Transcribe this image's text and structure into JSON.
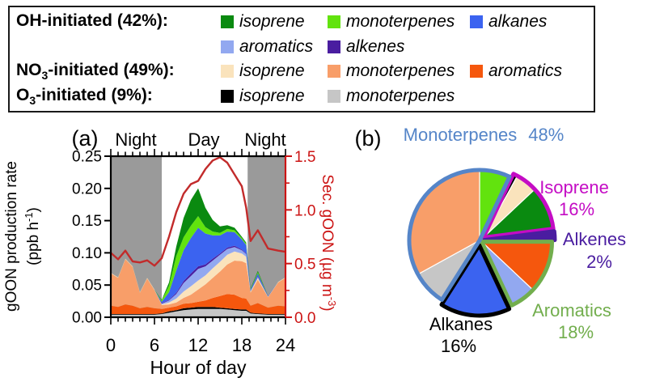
{
  "legend": {
    "rows": [
      {
        "group_prefix": "OH",
        "group_sub": "",
        "group_suffix": "-initiated (42%):",
        "items": [
          {
            "label": "isoprene",
            "color": "#0a8a10"
          },
          {
            "label": "monoterpenes",
            "color": "#62e30e"
          },
          {
            "label": "alkanes",
            "color": "#3b63f0"
          }
        ]
      },
      {
        "group_prefix": "",
        "group_sub": "",
        "group_suffix": "",
        "items": [
          {
            "label": "aromatics",
            "color": "#92a8f0"
          },
          {
            "label": "alkenes",
            "color": "#4a1da0"
          }
        ]
      },
      {
        "group_prefix": "NO",
        "group_sub": "3",
        "group_suffix": "-initiated (49%):",
        "items": [
          {
            "label": "isoprene",
            "color": "#fae3bc"
          },
          {
            "label": "monoterpenes",
            "color": "#f89e69"
          },
          {
            "label": "aromatics",
            "color": "#f5570d"
          }
        ]
      },
      {
        "group_prefix": "O",
        "group_sub": "3",
        "group_suffix": "-initiated (9%):",
        "items": [
          {
            "label": "isoprene",
            "color": "#000000"
          },
          {
            "label": "monoterpenes",
            "color": "#c6c6c6"
          }
        ]
      }
    ]
  },
  "chart_data": [
    {
      "id": "a",
      "type": "area",
      "stacked": true,
      "title": "(a)",
      "period_labels": [
        "Night",
        "Day",
        "Night"
      ],
      "xlabel": "Hour of day",
      "left_label_line1": "gOON production rate",
      "left_label_line2_open": "(ppb h",
      "left_label_line2_sup": "-1",
      "left_label_line2_close": ")",
      "right_label_open": "Sec. gOON (µg m",
      "right_label_sup": "-3",
      "right_label_close": ")",
      "xlim": [
        0,
        24
      ],
      "ylim_left": [
        0,
        0.25
      ],
      "ylim_right": [
        0,
        1.5
      ],
      "x_ticks": [
        0,
        6,
        12,
        18,
        24
      ],
      "left_ticks": [
        "0.00",
        "0.05",
        "0.10",
        "0.15",
        "0.20",
        "0.25"
      ],
      "right_ticks": [
        "0.0",
        "0.5",
        "1.0",
        "1.5"
      ],
      "day_span": [
        7,
        18.8
      ],
      "colors": {
        "night": "#9a9a9a",
        "axis_red": "#cc1414"
      },
      "x": [
        0,
        1,
        2,
        3,
        4,
        5,
        6,
        7,
        8,
        9,
        10,
        11,
        12,
        13,
        14,
        15,
        16,
        17,
        18,
        18.6,
        19.2,
        20.2,
        21.6,
        23,
        24
      ],
      "layers": [
        {
          "name": "o3_monoterpenes",
          "color": "#c6c6c6",
          "values": [
            0.004,
            0.004,
            0.004,
            0.004,
            0.004,
            0.004,
            0.004,
            0.005,
            0.007,
            0.009,
            0.011,
            0.012,
            0.013,
            0.013,
            0.013,
            0.013,
            0.012,
            0.011,
            0.01,
            0.01,
            0.006,
            0.005,
            0.004,
            0.004,
            0.004
          ]
        },
        {
          "name": "o3_isoprene",
          "color": "#000000",
          "values": [
            0.001,
            0.001,
            0.001,
            0.001,
            0.001,
            0.001,
            0.001,
            0.001,
            0.002,
            0.002,
            0.003,
            0.003,
            0.003,
            0.003,
            0.003,
            0.002,
            0.002,
            0.002,
            0.002,
            0.002,
            0.001,
            0.001,
            0.001,
            0.001,
            0.001
          ]
        },
        {
          "name": "no3_aromatics",
          "color": "#f5570d",
          "values": [
            0.013,
            0.011,
            0.015,
            0.013,
            0.009,
            0.011,
            0.009,
            0.007,
            0.006,
            0.006,
            0.007,
            0.007,
            0.008,
            0.01,
            0.014,
            0.018,
            0.022,
            0.022,
            0.018,
            0.017,
            0.011,
            0.016,
            0.01,
            0.013,
            0.012
          ]
        },
        {
          "name": "no3_monoterpenes",
          "color": "#f89e69",
          "values": [
            0.05,
            0.045,
            0.07,
            0.06,
            0.024,
            0.044,
            0.028,
            0.006,
            0.005,
            0.006,
            0.009,
            0.013,
            0.019,
            0.025,
            0.031,
            0.038,
            0.046,
            0.053,
            0.057,
            0.055,
            0.02,
            0.036,
            0.016,
            0.036,
            0.044
          ]
        },
        {
          "name": "no3_isoprene",
          "color": "#fae3bc",
          "values": [
            0.001,
            0.001,
            0.001,
            0.001,
            0.001,
            0.001,
            0.001,
            0.001,
            0.003,
            0.006,
            0.01,
            0.013,
            0.014,
            0.014,
            0.015,
            0.015,
            0.015,
            0.014,
            0.012,
            0.01,
            0.002,
            0.003,
            0.001,
            0.001,
            0.001
          ]
        },
        {
          "name": "oh_aromatics",
          "color": "#92a8f0",
          "values": [
            0,
            0,
            0,
            0,
            0,
            0,
            0,
            0.001,
            0.003,
            0.007,
            0.013,
            0.016,
            0.018,
            0.014,
            0.012,
            0.011,
            0.009,
            0.007,
            0.005,
            0.004,
            0.001,
            0.002,
            0,
            0,
            0
          ]
        },
        {
          "name": "oh_alkenes",
          "color": "#4a1da0",
          "values": [
            0,
            0,
            0,
            0,
            0,
            0,
            0,
            0.001,
            0.001,
            0.002,
            0.003,
            0.004,
            0.004,
            0.003,
            0.003,
            0.002,
            0.002,
            0.002,
            0.001,
            0.001,
            0,
            0.001,
            0,
            0,
            0
          ]
        },
        {
          "name": "oh_alkanes",
          "color": "#3b63f0",
          "values": [
            0,
            0,
            0,
            0,
            0,
            0,
            0,
            0.002,
            0.012,
            0.035,
            0.048,
            0.055,
            0.06,
            0.048,
            0.036,
            0.028,
            0.025,
            0.021,
            0.016,
            0.013,
            0.002,
            0.004,
            0.001,
            0,
            0
          ]
        },
        {
          "name": "oh_monoterpenes",
          "color": "#62e30e",
          "values": [
            0,
            0,
            0,
            0,
            0,
            0,
            0,
            0.002,
            0.01,
            0.022,
            0.02,
            0.019,
            0.018,
            0.01,
            0.006,
            0.004,
            0.004,
            0.003,
            0.002,
            0.002,
            0.001,
            0.002,
            0,
            0,
            0
          ]
        },
        {
          "name": "oh_isoprene",
          "color": "#0a8a10",
          "values": [
            0,
            0,
            0,
            0,
            0,
            0,
            0,
            0.001,
            0.005,
            0.015,
            0.03,
            0.04,
            0.043,
            0.03,
            0.018,
            0.01,
            0.006,
            0.004,
            0.002,
            0.002,
            0.001,
            0.002,
            0,
            0,
            0
          ]
        }
      ],
      "line": {
        "name": "sec_goon",
        "color": "#c22b2b",
        "values": [
          0.6,
          0.54,
          0.62,
          0.52,
          0.51,
          0.53,
          0.48,
          0.55,
          0.75,
          0.98,
          1.15,
          1.24,
          1.27,
          1.38,
          1.46,
          1.49,
          1.44,
          1.33,
          1.22,
          1.02,
          0.71,
          0.81,
          0.64,
          0.62,
          0.61
        ]
      }
    },
    {
      "id": "b",
      "type": "pie",
      "title": "(b)",
      "slices": [
        {
          "name": "oh_monoterpenes",
          "group": "monoterpenes",
          "value": 7,
          "color": "#62e30e"
        },
        {
          "name": "o3_isoprene",
          "group": "isoprene",
          "value": 1,
          "color": "#000000"
        },
        {
          "name": "no3_isoprene",
          "group": "isoprene",
          "value": 5,
          "color": "#fae3bc"
        },
        {
          "name": "oh_isoprene",
          "group": "isoprene",
          "value": 10,
          "color": "#0a8a10"
        },
        {
          "name": "oh_alkenes",
          "group": "alkenes",
          "value": 2,
          "color": "#4a1da0"
        },
        {
          "name": "no3_aromatics",
          "group": "aromatics",
          "value": 12,
          "color": "#f5570d"
        },
        {
          "name": "oh_aromatics",
          "group": "aromatics",
          "value": 6,
          "color": "#92a8f0"
        },
        {
          "name": "oh_alkanes",
          "group": "alkanes",
          "value": 16,
          "color": "#3b63f0"
        },
        {
          "name": "o3_monoterpenes",
          "group": "monoterpenes",
          "value": 8,
          "color": "#c6c6c6"
        },
        {
          "name": "no3_monoterpenes",
          "group": "monoterpenes",
          "value": 33,
          "color": "#f89e69"
        }
      ],
      "groups": [
        {
          "name": "isoprene",
          "start": 7,
          "end": 23,
          "color": "#c40cc4",
          "explode": 6
        },
        {
          "name": "alkenes",
          "start": 23,
          "end": 25,
          "color": "#4a1da0",
          "explode": 6
        },
        {
          "name": "aromatics",
          "start": 25,
          "end": 43,
          "color": "#72ae4d",
          "explode": 3
        },
        {
          "name": "alkanes",
          "start": 43,
          "end": 59,
          "color": "#000000",
          "explode": 6
        },
        {
          "name": "monoterpenes",
          "start": 59,
          "end": 107,
          "color": "#5585c8",
          "explode": 0
        }
      ],
      "labels": [
        {
          "text": "Monoterpenes",
          "pct": "48%",
          "color": "#5585c8"
        },
        {
          "text": "Isoprene",
          "pct": "16%",
          "color": "#c40cc4"
        },
        {
          "text": "Alkenes",
          "pct": "2%",
          "color": "#4a1da0"
        },
        {
          "text": "Aromatics",
          "pct": "18%",
          "color": "#72ae4d"
        },
        {
          "text": "Alkanes",
          "pct": "16%",
          "color": "#000000"
        }
      ]
    }
  ]
}
